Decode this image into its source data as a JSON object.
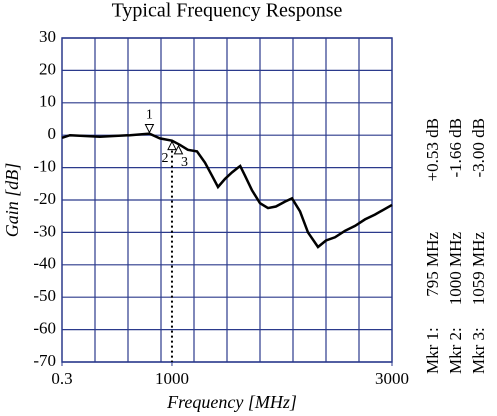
{
  "chart_data": {
    "type": "line",
    "title": "Typical Frequency Response",
    "xlabel": "Frequency [MHz]",
    "ylabel": "Gain [dB]",
    "xlim": [
      0.3,
      3000
    ],
    "xticks": [
      {
        "value": 0.3,
        "label": "0.3"
      },
      1000,
      3000
    ],
    "ylim": [
      -70,
      30
    ],
    "yticks": [
      30,
      20,
      10,
      0,
      -10,
      -20,
      -30,
      -40,
      -50,
      -60,
      -70
    ],
    "grid": true,
    "color": "#000000",
    "x": [
      0.3,
      73,
      345,
      618,
      795,
      890,
      1000,
      1073,
      1145,
      1227,
      1300,
      1364,
      1418,
      1482,
      1545,
      1600,
      1620,
      1664,
      1727,
      1800,
      1873,
      1945,
      2027,
      2091,
      2164,
      2236,
      2327,
      2400,
      2482,
      2573,
      2664,
      2755,
      2845,
      3000
    ],
    "values": [
      -0.8,
      0,
      -0.5,
      0,
      0.5,
      -1,
      -1.7,
      -3,
      -4.5,
      -5,
      -8.5,
      -12.5,
      -16,
      -13.5,
      -11.5,
      -10,
      -9.5,
      -12.5,
      -17,
      -21,
      -22.5,
      -22,
      -20.5,
      -19.5,
      -23.5,
      -30,
      -34.5,
      -32.5,
      -31.5,
      -29.5,
      -28,
      -26,
      -24.5,
      -21.5
    ],
    "markers": [
      {
        "id": "1",
        "name": "Mkr 1:",
        "freq": 795,
        "freq_label": "795 MHz",
        "gain": 0.53,
        "gain_label": "+0.53 dB"
      },
      {
        "id": "2",
        "name": "Mkr 2:",
        "freq": 1000,
        "freq_label": "1000 MHz",
        "gain": -1.66,
        "gain_label": "-1.66 dB"
      },
      {
        "id": "3",
        "name": "Mkr 3:",
        "freq": 1059,
        "freq_label": "1059 MHz",
        "gain": -3.0,
        "gain_label": "-3.00 dB"
      }
    ]
  }
}
